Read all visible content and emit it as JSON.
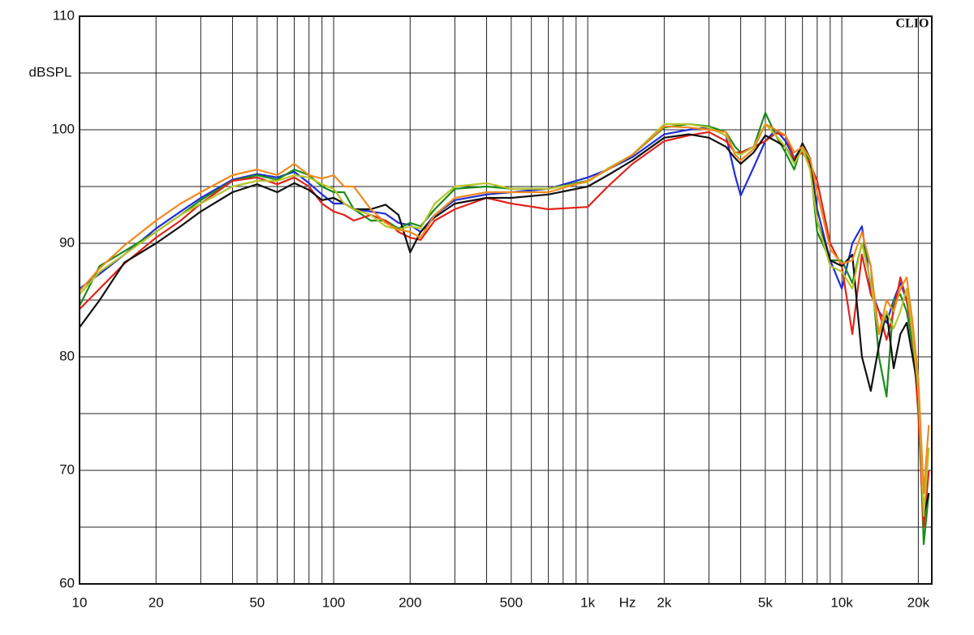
{
  "chart_data": {
    "type": "line",
    "x_label": "Hz",
    "y_label": "dBSPL",
    "watermark": "CLIO",
    "xscale": "log",
    "grid": true,
    "xlim": [
      10,
      22600
    ],
    "ylim": [
      60,
      110
    ],
    "xticks": [
      10,
      20,
      50,
      100,
      200,
      500,
      {
        "value": 1000,
        "label": "1k"
      },
      {
        "value": 2000,
        "label": "2k"
      },
      {
        "value": 5000,
        "label": "5k"
      },
      {
        "value": 10000,
        "label": "10k"
      },
      {
        "value": 20000,
        "label": "20k"
      }
    ],
    "x_minor_ticks": [
      30,
      40,
      60,
      70,
      80,
      90,
      300,
      400,
      600,
      700,
      800,
      900,
      3000,
      4000,
      6000,
      7000,
      8000,
      9000
    ],
    "yticks": [
      60,
      70,
      80,
      90,
      100,
      110
    ],
    "y_minor_ticks": [
      65,
      75,
      85,
      95,
      105
    ],
    "x": [
      10,
      12,
      15,
      20,
      25,
      30,
      40,
      50,
      60,
      70,
      80,
      90,
      100,
      110,
      120,
      140,
      160,
      180,
      200,
      220,
      250,
      300,
      400,
      500,
      700,
      1000,
      1200,
      1500,
      2000,
      2500,
      3000,
      3500,
      3800,
      4000,
      4500,
      5000,
      5500,
      6000,
      6500,
      7000,
      7500,
      8000,
      9000,
      10000,
      11000,
      12000,
      13000,
      14000,
      15000,
      16000,
      17000,
      18000,
      19000,
      20000,
      21000,
      22000
    ],
    "series": [
      {
        "color": "#1f2fd6",
        "values": [
          86,
          87.3,
          89,
          91.3,
          92.8,
          94,
          95.6,
          96.1,
          95.8,
          96.3,
          95.3,
          94.3,
          93.5,
          93.5,
          93,
          92.8,
          92.6,
          91.8,
          91.6,
          91,
          92.5,
          93.8,
          94.3,
          94.5,
          94.8,
          95.8,
          96.5,
          97.6,
          99.6,
          100,
          100.2,
          99.5,
          96,
          94.2,
          96.7,
          99,
          100,
          99,
          97.5,
          98.5,
          97.5,
          93,
          88.5,
          86,
          90,
          91.5,
          86,
          84,
          83,
          85,
          86.5,
          85,
          82,
          77,
          68,
          70
        ]
      },
      {
        "color": "#1a8c1a",
        "values": [
          84.5,
          88,
          89.3,
          91,
          92.5,
          93.8,
          95.5,
          96,
          95.6,
          96.5,
          96,
          95,
          94.5,
          94.5,
          93,
          92,
          92,
          91.3,
          91.8,
          91.5,
          93,
          94.8,
          95,
          94.8,
          94.8,
          95.5,
          96.5,
          97.8,
          100.2,
          100.5,
          100.3,
          99.8,
          98.5,
          98,
          98.5,
          101.5,
          99.5,
          98,
          96.5,
          98.8,
          97,
          91,
          88.5,
          88.5,
          86.5,
          90,
          88,
          80,
          76.5,
          85,
          85.5,
          84,
          81,
          77,
          63.5,
          68
        ]
      },
      {
        "color": "#e0241c",
        "values": [
          84.2,
          86,
          88.2,
          90.5,
          92,
          93.5,
          95.5,
          95.8,
          95.2,
          95.8,
          95,
          93.5,
          92.8,
          92.5,
          92,
          92.5,
          92,
          91,
          90.5,
          90.3,
          92,
          93,
          94,
          93.5,
          93,
          93.2,
          95,
          97,
          99,
          99.5,
          99.8,
          99,
          98,
          98,
          98.5,
          99,
          99.7,
          99.5,
          97.5,
          98,
          97,
          95.5,
          90,
          88,
          82,
          89,
          85.5,
          84,
          81.5,
          84,
          87,
          85,
          82,
          75,
          65,
          70
        ]
      },
      {
        "color": "#111111",
        "values": [
          82.6,
          85,
          88.3,
          90,
          91.5,
          92.8,
          94.5,
          95.2,
          94.5,
          95.3,
          94.7,
          93.8,
          94,
          93.5,
          93,
          93,
          93.4,
          92.5,
          89.2,
          91,
          92.3,
          93.5,
          94,
          94,
          94.3,
          95,
          96,
          97.3,
          99.3,
          99.6,
          99.3,
          98.5,
          97.5,
          97,
          98,
          99.5,
          99,
          98.5,
          97.2,
          98.8,
          97.5,
          92,
          88.5,
          88,
          89,
          80,
          77,
          81,
          84,
          79,
          82,
          83,
          80,
          77,
          66,
          68
        ]
      },
      {
        "color": "#b8c42a",
        "values": [
          85.5,
          87.5,
          89,
          91,
          92.5,
          93.5,
          95,
          95.5,
          95.5,
          96,
          95.8,
          95.2,
          94.8,
          93.5,
          93,
          92.5,
          91.5,
          91.2,
          91.5,
          91.3,
          93.5,
          95,
          95.3,
          94.8,
          94.8,
          95.4,
          96.6,
          97.8,
          100.5,
          100.5,
          100.2,
          99.5,
          98,
          97.8,
          98.5,
          100.5,
          99.5,
          98.5,
          97,
          98.3,
          96.5,
          92,
          88,
          87.5,
          86,
          90,
          86.5,
          82,
          84,
          82.5,
          84,
          86,
          82,
          77,
          66,
          72
        ]
      },
      {
        "color": "#f08a1e",
        "values": [
          85.8,
          87.8,
          89.8,
          92,
          93.5,
          94.5,
          96,
          96.5,
          96,
          97,
          96,
          95.7,
          96,
          95,
          95,
          93,
          91.8,
          91.2,
          91,
          90.5,
          92.5,
          94,
          94.5,
          94.5,
          94.5,
          95.5,
          96.5,
          97.8,
          100.3,
          100.2,
          100,
          99.8,
          97.8,
          97.3,
          98.3,
          100.5,
          100,
          99.5,
          98,
          98.5,
          97.5,
          94.5,
          89.5,
          88.2,
          88.5,
          91,
          88,
          82,
          85,
          84,
          86,
          87,
          83,
          78,
          68,
          74
        ]
      }
    ]
  }
}
